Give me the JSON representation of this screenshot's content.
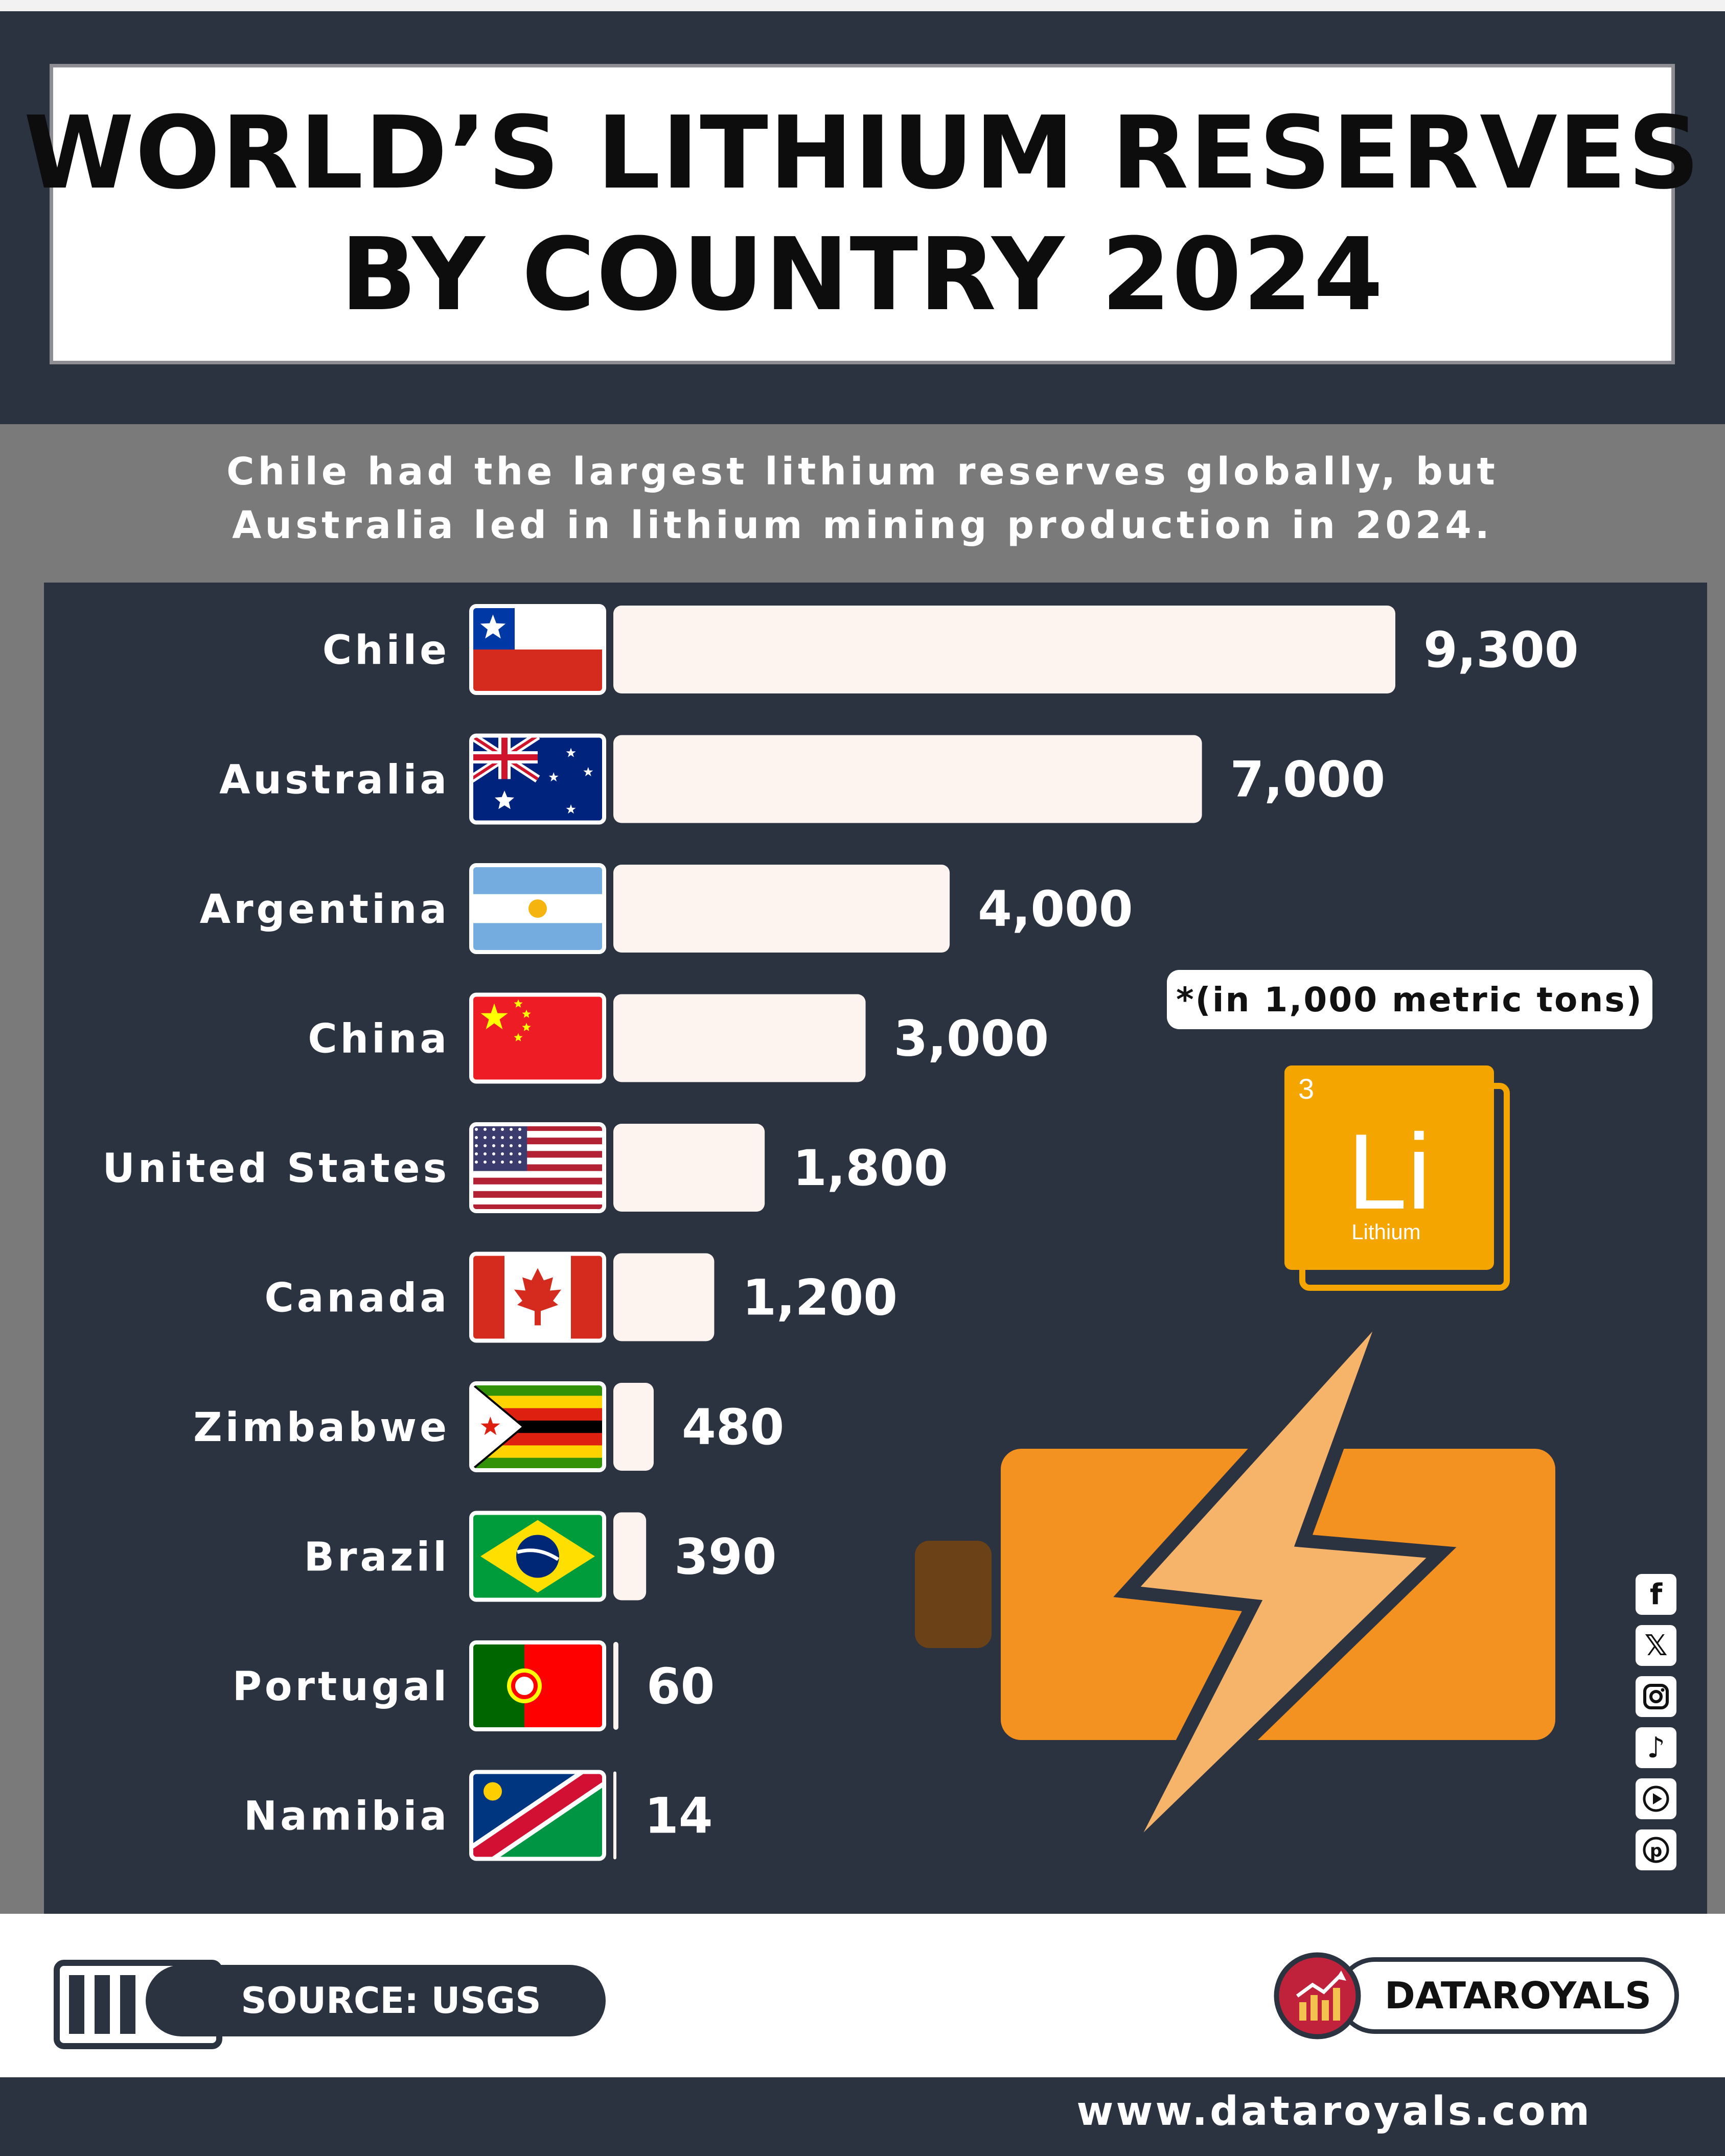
{
  "title": {
    "line1": "WORLD’S LITHIUM RESERVES",
    "line2": "BY COUNTRY 2024"
  },
  "subtitle": {
    "line1": "Chile had the largest lithium reserves globally, but",
    "line2": "Australia led in lithium mining production in 2024."
  },
  "unit_note": "*(in 1,000 metric tons)",
  "element_tile": {
    "number": "3",
    "symbol": "Li",
    "name": "Lithium"
  },
  "chart_data": {
    "type": "bar",
    "orientation": "horizontal",
    "categories": [
      "Chile",
      "Australia",
      "Argentina",
      "China",
      "United States",
      "Canada",
      "Zimbabwe",
      "Brazil",
      "Portugal",
      "Namibia"
    ],
    "values": [
      9300,
      7000,
      4000,
      3000,
      1800,
      1200,
      480,
      390,
      60,
      14
    ],
    "value_labels": [
      "9,300",
      "7,000",
      "4,000",
      "3,000",
      "1,800",
      "1,200",
      "480",
      "390",
      "60",
      "14"
    ],
    "flags": [
      "chile-flag",
      "australia-flag",
      "argentina-flag",
      "china-flag",
      "united-states-flag",
      "canada-flag",
      "zimbabwe-flag",
      "brazil-flag",
      "portugal-flag",
      "namibia-flag"
    ],
    "bar_color": "#fdf4ef",
    "xlim": [
      0,
      9300
    ],
    "grid": false
  },
  "footer": {
    "source": "SOURCE: USGS",
    "brand": "DATAROYALS",
    "website": "www.dataroyals.com"
  },
  "social_icons": [
    "facebook-icon",
    "x-icon",
    "instagram-icon",
    "tiktok-icon",
    "youtube-icon",
    "pinterest-icon"
  ],
  "colors": {
    "navy": "#2b3240",
    "gray": "#7a7a7a",
    "battery_orange": "#f39121",
    "bolt_light": "#f6b36a",
    "tile_orange": "#f5a500"
  }
}
